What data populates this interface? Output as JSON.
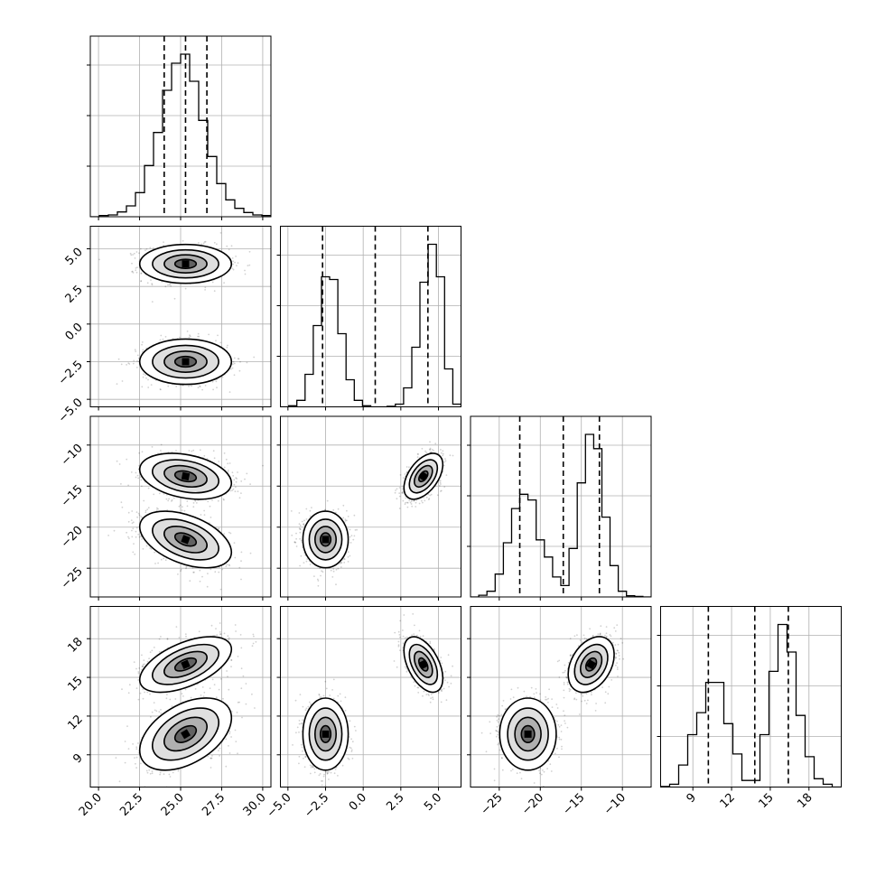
{
  "chart_data": {
    "type": "corner",
    "grid": true,
    "parameters": [
      {
        "range": [
          19.5,
          30.5
        ],
        "ticks": [
          20.0,
          22.5,
          25.0,
          27.5,
          30.0
        ],
        "tick_labels": [
          "20.0",
          "22.5",
          "25.0",
          "27.5",
          "30.0"
        ],
        "quantiles": [
          24.0,
          25.3,
          26.6
        ]
      },
      {
        "range": [
          -5.5,
          6.5
        ],
        "ticks": [
          -5.0,
          -2.5,
          0.0,
          2.5,
          5.0
        ],
        "tick_labels": [
          "−5.0",
          "−2.5",
          "0.0",
          "2.5",
          "5.0"
        ],
        "quantiles": [
          -2.7,
          0.8,
          4.3
        ]
      },
      {
        "range": [
          -28.5,
          -6.5
        ],
        "ticks": [
          -25,
          -20,
          -15,
          -10
        ],
        "tick_labels": [
          "−25",
          "−20",
          "−15",
          "−10"
        ],
        "quantiles": [
          -22.5,
          -17.2,
          -12.8
        ]
      },
      {
        "range": [
          6.5,
          20.5
        ],
        "ticks": [
          9,
          12,
          15,
          18
        ],
        "tick_labels": [
          "9",
          "12",
          "15",
          "18"
        ],
        "quantiles": [
          10.2,
          13.8,
          16.4
        ]
      }
    ],
    "histograms": [
      {
        "bins": [
          19.5,
          30.5
        ],
        "counts": [
          0,
          2,
          3,
          8,
          18,
          40,
          85,
          140,
          210,
          255,
          270,
          225,
          160,
          100,
          55,
          28,
          14,
          7,
          3,
          2
        ]
      },
      {
        "bins": [
          -5.5,
          6.5
        ],
        "counts": [
          0,
          2,
          12,
          60,
          150,
          240,
          235,
          135,
          50,
          12,
          2,
          0,
          0,
          1,
          5,
          35,
          110,
          230,
          300,
          240,
          70,
          5
        ]
      },
      {
        "bins": [
          -28.5,
          -6.5
        ],
        "counts": [
          0,
          3,
          10,
          40,
          95,
          155,
          180,
          170,
          100,
          70,
          35,
          20,
          85,
          200,
          285,
          260,
          140,
          55,
          10,
          2,
          1,
          0
        ]
      },
      {
        "bins": [
          6.5,
          20.5
        ],
        "counts": [
          1,
          5,
          40,
          95,
          135,
          190,
          190,
          115,
          60,
          12,
          12,
          95,
          210,
          295,
          245,
          130,
          55,
          15,
          5,
          0
        ]
      }
    ],
    "clusters": [
      {
        "mean": [
          25.3,
          4.0,
          -13.8,
          16.0
        ],
        "std": [
          1.3,
          0.6,
          1.3,
          1.0
        ],
        "corr": [
          [
            0,
            2,
            -0.3
          ],
          [
            0,
            3,
            0.55
          ],
          [
            1,
            2,
            0.5
          ],
          [
            1,
            3,
            -0.5
          ],
          [
            2,
            3,
            0.35
          ]
        ]
      },
      {
        "mean": [
          25.3,
          -2.5,
          -21.5,
          10.6
        ],
        "std": [
          1.3,
          0.7,
          1.6,
          1.3
        ],
        "corr": [
          [
            0,
            2,
            -0.45
          ],
          [
            0,
            3,
            0.45
          ],
          [
            1,
            2,
            0.0
          ],
          [
            1,
            3,
            0.0
          ],
          [
            2,
            3,
            0.0
          ]
        ]
      }
    ]
  }
}
